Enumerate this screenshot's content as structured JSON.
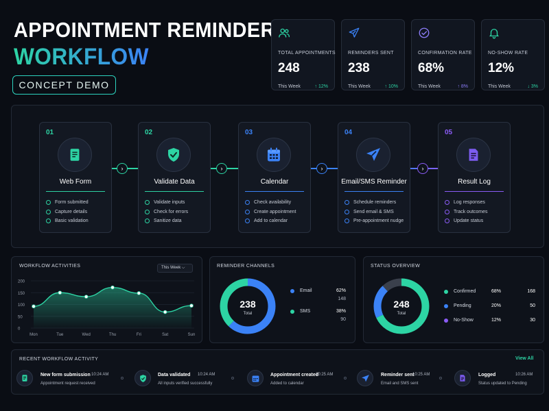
{
  "header": {
    "title_line1": "APPOINTMENT REMINDER",
    "title_line2": "WORKFLOW",
    "badge": "CONCEPT DEMO"
  },
  "stats": [
    {
      "icon": "users-icon",
      "label": "TOTAL APPOINTMENTS",
      "value": "248",
      "period": "This Week",
      "change": "↑ 12%",
      "color": "#2dd4a4"
    },
    {
      "icon": "send-icon",
      "label": "REMINDERS SENT",
      "value": "238",
      "period": "This Week",
      "change": "↑ 10%",
      "color": "#3b82f6"
    },
    {
      "icon": "check-circle-icon",
      "label": "CONFIRMATION RATE",
      "value": "68%",
      "period": "This Week",
      "change": "↑ 8%",
      "color": "#8b7cf6"
    },
    {
      "icon": "bell-icon",
      "label": "NO-SHOW RATE",
      "value": "12%",
      "period": "This Week",
      "change": "↓ 3%",
      "color": "#2dd4a4"
    }
  ],
  "workflow": {
    "steps": [
      {
        "num": "01",
        "name": "Web Form",
        "icon": "form-icon",
        "color": "#2dd4a4",
        "items": [
          "Form submitted",
          "Capture details",
          "Basic validation"
        ]
      },
      {
        "num": "02",
        "name": "Validate Data",
        "icon": "shield-check-icon",
        "color": "#2dd4a4",
        "items": [
          "Validate inputs",
          "Check for errors",
          "Sanitize data"
        ]
      },
      {
        "num": "03",
        "name": "Calendar",
        "icon": "calendar-icon",
        "color": "#3b82f6",
        "items": [
          "Check availability",
          "Create appointment",
          "Add to calendar"
        ]
      },
      {
        "num": "04",
        "name": "Email/SMS Reminder",
        "icon": "send-icon",
        "color": "#3b82f6",
        "items": [
          "Schedule reminders",
          "Send email & SMS",
          "Pre-appointment nudge"
        ]
      },
      {
        "num": "05",
        "name": "Result Log",
        "icon": "document-icon",
        "color": "#8b5cf6",
        "items": [
          "Log responses",
          "Track outcomes",
          "Update status"
        ]
      }
    ]
  },
  "activities": {
    "title": "WORKFLOW ACTIVITIES",
    "filter": "This Week ⌵"
  },
  "chart_data": [
    {
      "type": "area",
      "title": "WORKFLOW ACTIVITIES",
      "categories": [
        "Mon",
        "Tue",
        "Wed",
        "Thu",
        "Fri",
        "Sat",
        "Sun"
      ],
      "values": [
        92,
        150,
        133,
        172,
        148,
        68,
        95
      ],
      "yticks": [
        "200",
        "150",
        "100",
        "50",
        "0"
      ],
      "ylim": [
        0,
        200
      ],
      "color": "#2dd4a4",
      "grid": true
    },
    {
      "type": "pie",
      "title": "REMINDER CHANNELS",
      "center_value": "238",
      "center_label": "Total",
      "slices": [
        {
          "name": "Email",
          "percent": "62%",
          "count": "148",
          "value": 62,
          "color": "#3b82f6"
        },
        {
          "name": "SMS",
          "percent": "38%",
          "count": "90",
          "value": 38,
          "color": "#2dd4a4"
        }
      ]
    },
    {
      "type": "pie",
      "title": "STATUS OVERVIEW",
      "center_value": "248",
      "center_label": "Total",
      "slices": [
        {
          "name": "Confirmed",
          "percent": "68%",
          "count": "168",
          "value": 68,
          "color": "#2dd4a4"
        },
        {
          "name": "Pending",
          "percent": "20%",
          "count": "50",
          "value": 20,
          "color": "#3b82f6"
        },
        {
          "name": "No-Show",
          "percent": "12%",
          "count": "30",
          "value": 12,
          "color": "#3a404c"
        }
      ],
      "legend_colors": [
        "#2dd4a4",
        "#3b82f6",
        "#8b5cf6"
      ]
    }
  ],
  "recent": {
    "title": "RECENT WORKFLOW ACTIVITY",
    "view_all": "View All",
    "items": [
      {
        "icon": "form-icon",
        "title": "New form submission",
        "time": "10:24 AM",
        "sub": "Appointment request received",
        "color": "#2dd4a4"
      },
      {
        "icon": "shield-check-icon",
        "title": "Data validated",
        "time": "10:24 AM",
        "sub": "All inputs verified successfully",
        "color": "#2dd4a4"
      },
      {
        "icon": "calendar-icon",
        "title": "Appointment created",
        "time": "10:25 AM",
        "sub": "Added to calendar",
        "color": "#3b82f6"
      },
      {
        "icon": "send-icon",
        "title": "Reminder sent",
        "time": "10:25 AM",
        "sub": "Email and SMS sent",
        "color": "#3b82f6"
      },
      {
        "icon": "document-icon",
        "title": "Logged",
        "time": "10:26 AM",
        "sub": "Status updated to Pending",
        "color": "#8b5cf6"
      }
    ]
  }
}
